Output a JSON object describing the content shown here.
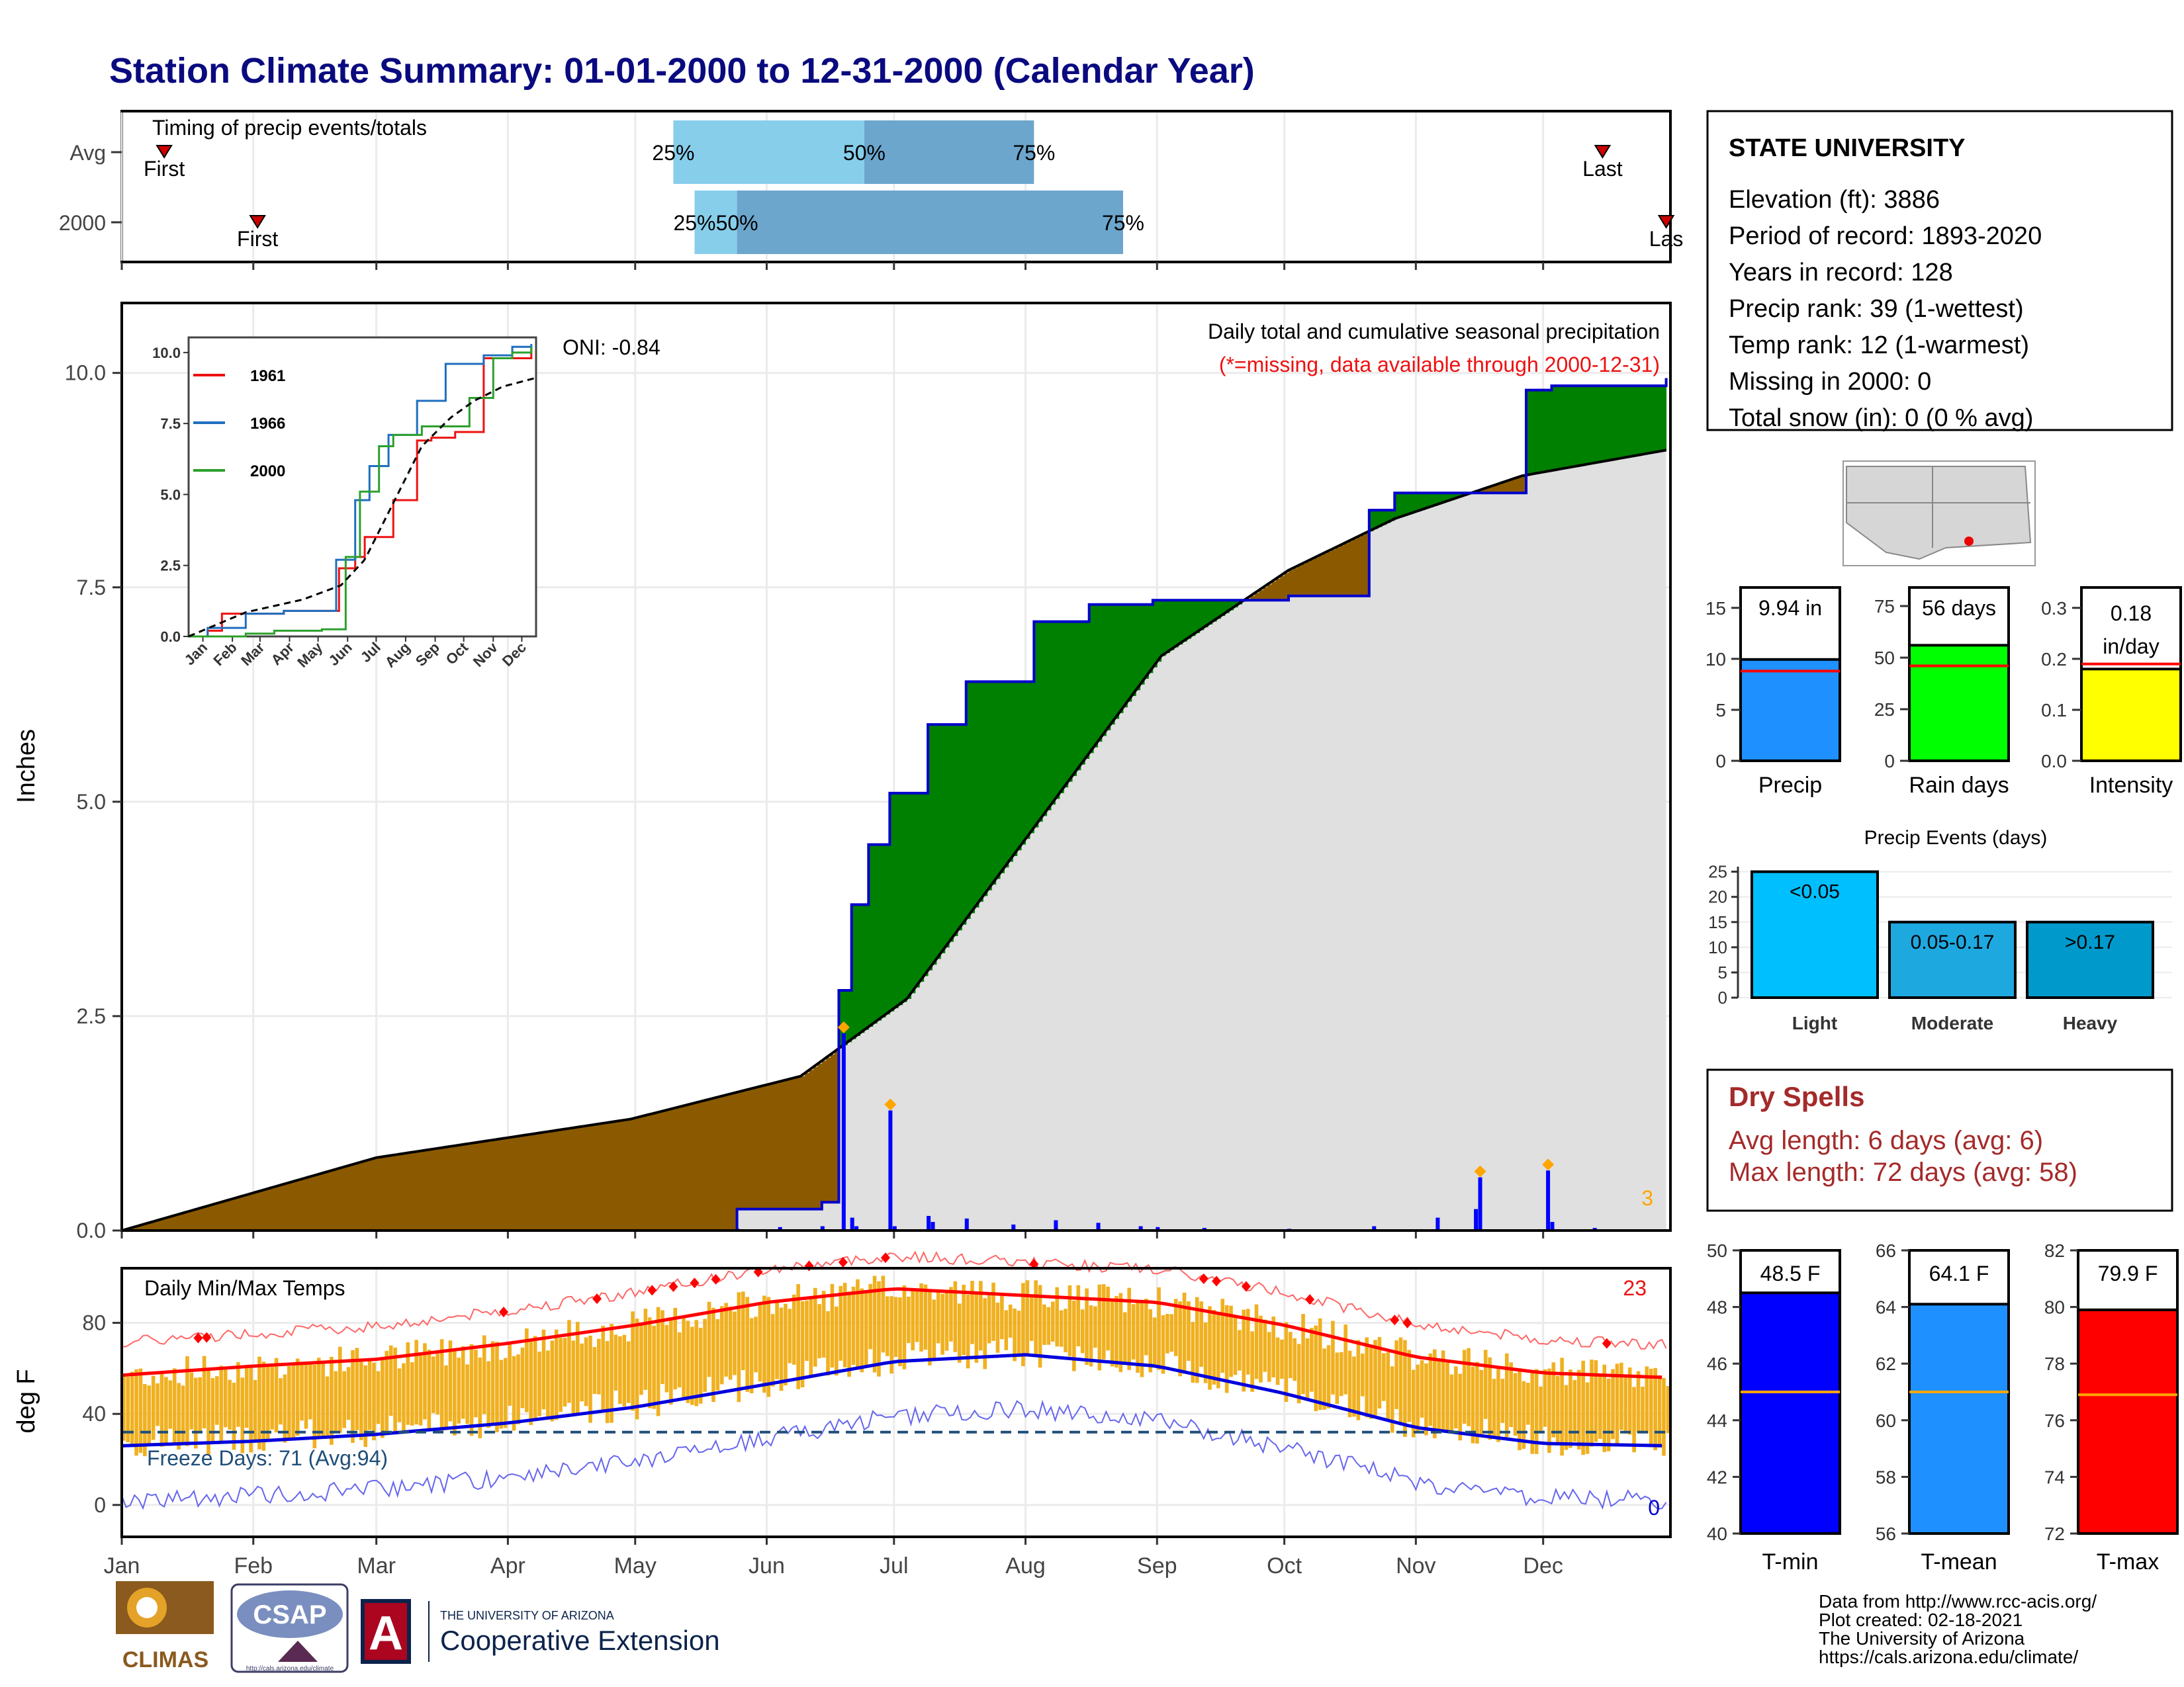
{
  "title": "Station Climate Summary: 01-01-2000 to 12-31-2000 (Calendar Year)",
  "months": [
    "Jan",
    "Feb",
    "Mar",
    "Apr",
    "May",
    "Jun",
    "Jul",
    "Aug",
    "Sep",
    "Oct",
    "Nov",
    "Dec"
  ],
  "timing": {
    "label": "Timing of precip events/totals",
    "rows": [
      {
        "name": "Avg",
        "first_day": 10,
        "last_day": 349,
        "q25": 130,
        "q50": 175,
        "q75": 215,
        "first_label": "First",
        "last_label": "Last",
        "q25_label": "25%",
        "q50_label": "50%",
        "q75_label": "75%"
      },
      {
        "name": "2000",
        "first_day": 32,
        "last_day": 364,
        "q25": 135,
        "q50": 145,
        "q75": 236,
        "first_label": "First",
        "last_label": "Las",
        "q25_label": "25%",
        "q50_label": "50%",
        "q75_label": "75%"
      }
    ]
  },
  "precip": {
    "ylabel": "Inches",
    "subtitle": "Daily total and cumulative seasonal precipitation",
    "missing_note": "(*=missing, data available through 2000-12-31)",
    "oni": "ONI: -0.84",
    "corner_count": "3",
    "colors": {
      "above": "#008000",
      "below": "#8B5A00",
      "avg": "#e0e0e0",
      "line": "#0000cc",
      "daily": "#0000ff",
      "marker": "#FFA500"
    },
    "yticks": [
      "0.0",
      "2.5",
      "5.0",
      "7.5",
      "10.0"
    ]
  },
  "inset": {
    "legend": [
      "1961",
      "1966",
      "2000"
    ],
    "colors": [
      "#ee1111",
      "#1f6fbf",
      "#2ca02c"
    ],
    "yticks": [
      "0.0",
      "2.5",
      "5.0",
      "7.5",
      "10.0"
    ],
    "months": [
      "Jan",
      "Feb",
      "Mar",
      "Apr",
      "May",
      "Jun",
      "Jul",
      "Aug",
      "Sep",
      "Oct",
      "Nov",
      "Dec"
    ]
  },
  "temps": {
    "ylabel": "deg F",
    "label": "Daily Min/Max Temps",
    "freeze_label": "Freeze Days: 71 (Avg:94)",
    "max_record_count": "23",
    "min_record_count": "0",
    "freeze_line": 32,
    "yticks": [
      "0",
      "40",
      "80"
    ],
    "colors": {
      "bars": "#F0B020",
      "avg_max": "#ff0000",
      "avg_min": "#0000dd",
      "rec_max": "#ff6666",
      "rec_min": "#6666ee",
      "freeze": "#1f4e79",
      "marker": "#ff0000"
    }
  },
  "station": {
    "name": "STATE UNIVERSITY",
    "lines": [
      "Elevation (ft): 3886",
      "Period of record: 1893-2020",
      "Years in record: 128",
      "Precip rank: 39 (1-wettest)",
      "Temp rank: 12 (1-warmest)",
      "Missing in 2000: 0",
      "Total snow (in): 0 (0 % avg)"
    ]
  },
  "summary_bars": [
    {
      "label": "Precip",
      "value": 9.94,
      "value_label": "9.94 in",
      "avg": 8.8,
      "max": 17,
      "ticks": [
        "0",
        "5",
        "10",
        "15"
      ],
      "tickvals": [
        0,
        5,
        10,
        15
      ],
      "color": "#1e90ff"
    },
    {
      "label": "Rain days",
      "value": 56,
      "value_label": "56 days",
      "avg": 46,
      "max": 84,
      "ticks": [
        "0",
        "25",
        "50",
        "75"
      ],
      "tickvals": [
        0,
        25,
        50,
        75
      ],
      "color": "#00ff00"
    },
    {
      "label": "Intensity",
      "value": 0.18,
      "value_label": "0.18 in/day",
      "avg": 0.19,
      "max": 0.34,
      "ticks": [
        "0.0",
        "0.1",
        "0.2",
        "0.3"
      ],
      "tickvals": [
        0,
        0.1,
        0.2,
        0.3
      ],
      "color": "#ffff00"
    }
  ],
  "precip_events": {
    "title": "Precip Events (days)",
    "categories": [
      "Light",
      "Moderate",
      "Heavy"
    ],
    "bar_labels": [
      "<0.05",
      "0.05-0.17",
      ">0.17"
    ],
    "values": [
      25,
      15,
      15
    ],
    "colors": [
      "#00bfff",
      "#1ea8e0",
      "#0099cc"
    ],
    "yticks": [
      "0",
      "5",
      "10",
      "15",
      "20",
      "25"
    ]
  },
  "dry_spells": {
    "title": "Dry Spells",
    "lines": [
      "Avg length: 6 days (avg: 6)",
      "Max length: 72 days (avg: 58)"
    ]
  },
  "temp_bars": [
    {
      "label": "T-min",
      "value": 48.5,
      "value_label": "48.5 F",
      "avg": 45.0,
      "min": 40,
      "max": 50,
      "ticks": [
        "40",
        "42",
        "44",
        "46",
        "48",
        "50"
      ],
      "color": "#0000ff"
    },
    {
      "label": "T-mean",
      "value": 64.1,
      "value_label": "64.1 F",
      "avg": 61.0,
      "min": 56,
      "max": 66,
      "ticks": [
        "56",
        "58",
        "60",
        "62",
        "64",
        "66"
      ],
      "color": "#1e90ff"
    },
    {
      "label": "T-max",
      "value": 79.9,
      "value_label": "79.9 F",
      "avg": 76.9,
      "min": 72,
      "max": 82,
      "ticks": [
        "72",
        "74",
        "76",
        "78",
        "80",
        "82"
      ],
      "color": "#ff0000"
    }
  ],
  "footer": [
    "Data from http://www.rcc-acis.org/",
    "Plot created: 02-18-2021",
    "The University of Arizona",
    "https://cals.arizona.edu/climate/"
  ],
  "logos": {
    "climas": "CLIMAS",
    "csap": "CSAP",
    "csap_url": "http://cals.arizona.edu/climate",
    "ua_line1": "THE UNIVERSITY OF ARIZONA",
    "ua_line2": "Cooperative Extension",
    "ua_letter": "A"
  },
  "chart_data": [
    {
      "type": "area",
      "title": "Daily total and cumulative seasonal precipitation",
      "xlabel": "",
      "ylabel": "Inches",
      "ylim": [
        0,
        10.8
      ],
      "x_units": "day of year 2000",
      "series": [
        {
          "name": "2000 cumulative",
          "x": [
            0,
            145,
            165,
            169,
            172,
            176,
            181,
            190,
            199,
            215,
            228,
            243,
            275,
            294,
            300,
            331,
            337,
            364
          ],
          "values": [
            0,
            0.25,
            0.33,
            2.8,
            3.8,
            4.5,
            5.1,
            5.9,
            6.4,
            7.1,
            7.3,
            7.35,
            7.4,
            8.4,
            8.6,
            9.8,
            9.85,
            9.94
          ]
        },
        {
          "name": "Average cumulative",
          "x": [
            0,
            60,
            120,
            160,
            185,
            215,
            245,
            275,
            300,
            330,
            364
          ],
          "values": [
            0,
            0.85,
            1.3,
            1.8,
            2.7,
            4.7,
            6.7,
            7.7,
            8.3,
            8.8,
            9.1
          ]
        },
        {
          "name": "Daily precip",
          "x": [
            145,
            155,
            165,
            170,
            172,
            173,
            181,
            182,
            190,
            191,
            199,
            210,
            220,
            230,
            240,
            244,
            255,
            275,
            295,
            310,
            319,
            320,
            336,
            337,
            347
          ],
          "values": [
            0.02,
            0.04,
            0.05,
            2.3,
            0.15,
            0.05,
            1.4,
            0.05,
            0.17,
            0.1,
            0.14,
            0.07,
            0.12,
            0.09,
            0.05,
            0.04,
            0.03,
            0.02,
            0.05,
            0.15,
            0.25,
            0.62,
            0.7,
            0.1,
            0.03
          ]
        }
      ]
    },
    {
      "type": "line",
      "title": "",
      "x": [
        0,
        31,
        60,
        91,
        121,
        152,
        182,
        213,
        244,
        274,
        305,
        335,
        364
      ],
      "series": [
        {
          "name": "Avg max",
          "values": [
            57,
            61,
            64,
            71,
            79,
            89,
            95,
            92,
            89,
            79,
            65,
            58,
            56
          ]
        },
        {
          "name": "Avg min",
          "values": [
            26,
            28,
            31,
            36,
            43,
            53,
            63,
            66,
            61,
            49,
            34,
            27,
            26
          ]
        }
      ],
      "ylabel": "deg F"
    },
    {
      "type": "bar",
      "categories": [
        "Light",
        "Moderate",
        "Heavy"
      ],
      "values": [
        25,
        15,
        15
      ],
      "title": "Precip Events (days)"
    }
  ]
}
